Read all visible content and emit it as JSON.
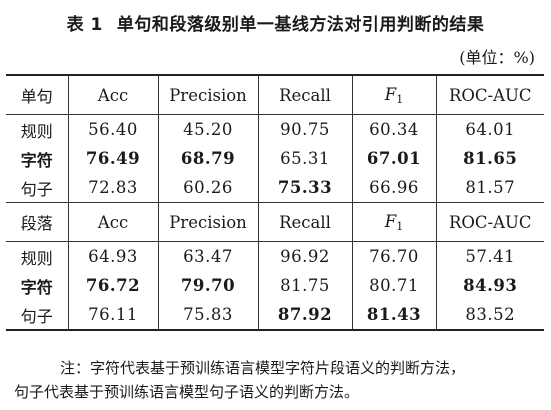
{
  "title": {
    "number": "表 1",
    "text": "单句和段落级别单一基线方法对引用判断的结果"
  },
  "unit_label": "(单位：%)",
  "table": {
    "sections": [
      {
        "header": [
          "单句",
          "Acc",
          "Precision",
          "Recall",
          "F",
          "ROC-AUC"
        ],
        "f_subscript": "1",
        "rows": [
          {
            "label": "规则",
            "label_bold": false,
            "cells": [
              {
                "v": "56.40",
                "bold": false
              },
              {
                "v": "45.20",
                "bold": false
              },
              {
                "v": "90.75",
                "bold": false
              },
              {
                "v": "60.34",
                "bold": false
              },
              {
                "v": "64.01",
                "bold": false
              }
            ]
          },
          {
            "label": "字符",
            "label_bold": true,
            "cells": [
              {
                "v": "76.49",
                "bold": true
              },
              {
                "v": "68.79",
                "bold": true
              },
              {
                "v": "65.31",
                "bold": false
              },
              {
                "v": "67.01",
                "bold": true
              },
              {
                "v": "81.65",
                "bold": true
              }
            ]
          },
          {
            "label": "句子",
            "label_bold": false,
            "cells": [
              {
                "v": "72.83",
                "bold": false
              },
              {
                "v": "60.26",
                "bold": false
              },
              {
                "v": "75.33",
                "bold": true
              },
              {
                "v": "66.96",
                "bold": false
              },
              {
                "v": "81.57",
                "bold": false
              }
            ]
          }
        ]
      },
      {
        "header": [
          "段落",
          "Acc",
          "Precision",
          "Recall",
          "F",
          "ROC-AUC"
        ],
        "f_subscript": "1",
        "rows": [
          {
            "label": "规则",
            "label_bold": false,
            "cells": [
              {
                "v": "64.93",
                "bold": false
              },
              {
                "v": "63.47",
                "bold": false
              },
              {
                "v": "96.92",
                "bold": false
              },
              {
                "v": "76.70",
                "bold": false
              },
              {
                "v": "57.41",
                "bold": false
              }
            ]
          },
          {
            "label": "字符",
            "label_bold": true,
            "cells": [
              {
                "v": "76.72",
                "bold": true
              },
              {
                "v": "79.70",
                "bold": true
              },
              {
                "v": "81.75",
                "bold": false
              },
              {
                "v": "80.71",
                "bold": false
              },
              {
                "v": "84.93",
                "bold": true
              }
            ]
          },
          {
            "label": "句子",
            "label_bold": false,
            "cells": [
              {
                "v": "76.11",
                "bold": false
              },
              {
                "v": "75.83",
                "bold": false
              },
              {
                "v": "87.92",
                "bold": true
              },
              {
                "v": "81.43",
                "bold": true
              },
              {
                "v": "83.52",
                "bold": false
              }
            ]
          }
        ]
      }
    ]
  },
  "note": {
    "line1": "注：字符代表基于预训练语言模型字符片段语义的判断方法，",
    "line2": "句子代表基于预训练语言模型句子语义的判断方法。"
  }
}
